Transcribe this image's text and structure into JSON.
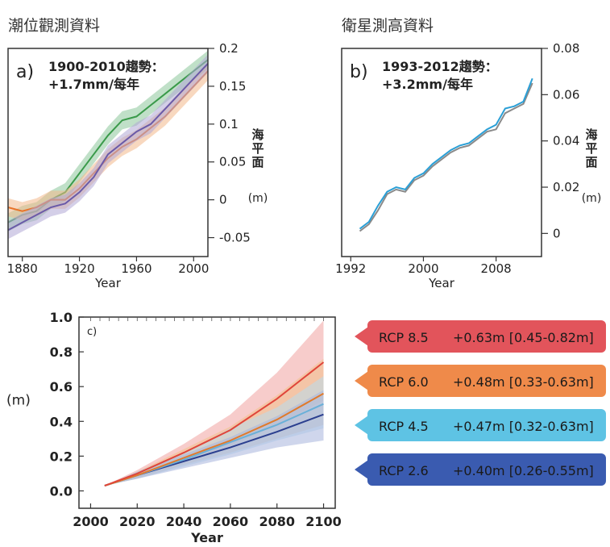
{
  "panel_headers": {
    "tide": "潮位觀測資料",
    "satellite": "衛星測高資料"
  },
  "chart_data": [
    {
      "id": "a",
      "type": "line",
      "panel_label": "a)",
      "annotation": "1900-2010趨勢：\n+1.7mm/每年",
      "xlabel": "Year",
      "ylabel": "海\n平\n面\n(m)",
      "xlim": [
        1870,
        2010
      ],
      "ylim": [
        -0.075,
        0.2
      ],
      "xticks": [
        1880,
        1920,
        1960,
        2000
      ],
      "yticks": [
        -0.05,
        0,
        0.05,
        0.1,
        0.15,
        0.2
      ],
      "ytick_labels": [
        "-0.05",
        "0",
        "0.05",
        "0.1",
        "0.15",
        "0.2"
      ],
      "axis_side": "right",
      "series": [
        {
          "color": "#3a9a4a",
          "band_color": "#8cc79a",
          "x": [
            1870,
            1880,
            1890,
            1900,
            1910,
            1920,
            1930,
            1940,
            1950,
            1960,
            1970,
            1980,
            1990,
            2000,
            2010
          ],
          "y": [
            -0.03,
            -0.02,
            -0.015,
            0.0,
            0.01,
            0.035,
            0.06,
            0.085,
            0.105,
            0.11,
            0.125,
            0.14,
            0.155,
            0.17,
            0.185
          ]
        },
        {
          "color": "#e8742b",
          "band_color": "#f3b88a",
          "x": [
            1870,
            1880,
            1890,
            1900,
            1910,
            1920,
            1930,
            1940,
            1950,
            1960,
            1970,
            1980,
            1990,
            2000,
            2010
          ],
          "y": [
            -0.01,
            -0.015,
            -0.01,
            0.0,
            0.0,
            0.015,
            0.035,
            0.055,
            0.07,
            0.08,
            0.095,
            0.11,
            0.13,
            0.15,
            0.17
          ]
        },
        {
          "color": "#6a5aa8",
          "band_color": "#b0a8d6",
          "x": [
            1870,
            1880,
            1890,
            1900,
            1910,
            1920,
            1930,
            1940,
            1950,
            1960,
            1970,
            1980,
            1990,
            2000,
            2010
          ],
          "y": [
            -0.04,
            -0.03,
            -0.02,
            -0.01,
            -0.005,
            0.01,
            0.03,
            0.06,
            0.075,
            0.09,
            0.1,
            0.12,
            0.14,
            0.16,
            0.18
          ]
        }
      ]
    },
    {
      "id": "b",
      "type": "line",
      "panel_label": "b)",
      "annotation": "1993-2012趨勢：\n+3.2mm/每年",
      "xlabel": "Year",
      "ylabel": "海\n平\n面\n(m)",
      "xlim": [
        1991,
        2013
      ],
      "ylim": [
        -0.01,
        0.08
      ],
      "xticks": [
        1992,
        2000,
        2008
      ],
      "yticks": [
        0,
        0.02,
        0.04,
        0.06,
        0.08
      ],
      "ytick_labels": [
        "0",
        "0.02",
        "0.04",
        "0.06",
        "0.08"
      ],
      "axis_side": "right",
      "series": [
        {
          "color": "#8a8a8a",
          "x": [
            1993,
            1994,
            1995,
            1996,
            1997,
            1998,
            1999,
            2000,
            2001,
            2002,
            2003,
            2004,
            2005,
            2006,
            2007,
            2008,
            2009,
            2010,
            2011,
            2012
          ],
          "y": [
            0.001,
            0.004,
            0.01,
            0.017,
            0.019,
            0.018,
            0.023,
            0.025,
            0.029,
            0.032,
            0.035,
            0.037,
            0.038,
            0.041,
            0.044,
            0.045,
            0.052,
            0.054,
            0.056,
            0.065
          ]
        },
        {
          "color": "#2a9fd6",
          "x": [
            1993,
            1994,
            1995,
            1996,
            1997,
            1998,
            1999,
            2000,
            2001,
            2002,
            2003,
            2004,
            2005,
            2006,
            2007,
            2008,
            2009,
            2010,
            2011,
            2012
          ],
          "y": [
            0.002,
            0.005,
            0.012,
            0.018,
            0.02,
            0.019,
            0.024,
            0.026,
            0.03,
            0.033,
            0.036,
            0.038,
            0.039,
            0.042,
            0.045,
            0.047,
            0.054,
            0.055,
            0.057,
            0.067
          ]
        }
      ]
    },
    {
      "id": "c",
      "type": "area",
      "panel_label": "c)",
      "xlabel": "Year",
      "ylabel": "(m)",
      "xlim": [
        1995,
        2105
      ],
      "ylim": [
        -0.1,
        1.0
      ],
      "xticks": [
        2000,
        2020,
        2040,
        2060,
        2080,
        2100
      ],
      "yticks": [
        0.0,
        0.2,
        0.4,
        0.6,
        0.8,
        1.0
      ],
      "ytick_labels": [
        "0.0",
        "0.2",
        "0.4",
        "0.6",
        "0.8",
        "1.0"
      ],
      "series": [
        {
          "name": "RCP 8.5",
          "value": "+0.63m",
          "range": "[0.45-0.82m]",
          "color": "#e0453a",
          "band_color": "#f0a3a0",
          "badge_color": "#e2545b",
          "x": [
            2006,
            2020,
            2040,
            2060,
            2080,
            2100
          ],
          "y": [
            0.03,
            0.1,
            0.22,
            0.35,
            0.53,
            0.74
          ],
          "lower": [
            0.03,
            0.08,
            0.17,
            0.26,
            0.38,
            0.52
          ],
          "upper": [
            0.03,
            0.12,
            0.27,
            0.44,
            0.68,
            0.98
          ]
        },
        {
          "name": "RCP 6.0",
          "value": "+0.48m",
          "range": "[0.33-0.63m]",
          "color": "#e07a2b",
          "band_color": "#f2c08a",
          "badge_color": "#ef8a4a",
          "x": [
            2006,
            2020,
            2040,
            2060,
            2080,
            2100
          ],
          "y": [
            0.03,
            0.09,
            0.19,
            0.29,
            0.41,
            0.56
          ],
          "lower": [
            0.03,
            0.07,
            0.15,
            0.22,
            0.3,
            0.38
          ],
          "upper": [
            0.03,
            0.11,
            0.24,
            0.37,
            0.55,
            0.76
          ]
        },
        {
          "name": "RCP 4.5",
          "value": "+0.47m",
          "range": "[0.32-0.63m]",
          "color": "#6ab0d8",
          "band_color": "#b8dcee",
          "badge_color": "#5ec3e4",
          "x": [
            2006,
            2020,
            2040,
            2060,
            2080,
            2100
          ],
          "y": [
            0.03,
            0.09,
            0.18,
            0.28,
            0.38,
            0.5
          ],
          "lower": [
            0.03,
            0.07,
            0.14,
            0.21,
            0.29,
            0.36
          ],
          "upper": [
            0.03,
            0.11,
            0.22,
            0.36,
            0.48,
            0.66
          ]
        },
        {
          "name": "RCP 2.6",
          "value": "+0.40m",
          "range": "[0.26-0.55m]",
          "color": "#2b3f8f",
          "band_color": "#a8b4dc",
          "badge_color": "#3a5bb0",
          "x": [
            2006,
            2020,
            2040,
            2060,
            2080,
            2100
          ],
          "y": [
            0.03,
            0.09,
            0.17,
            0.25,
            0.34,
            0.44
          ],
          "lower": [
            0.03,
            0.07,
            0.13,
            0.19,
            0.25,
            0.29
          ],
          "upper": [
            0.03,
            0.11,
            0.21,
            0.31,
            0.43,
            0.58
          ]
        }
      ]
    }
  ]
}
